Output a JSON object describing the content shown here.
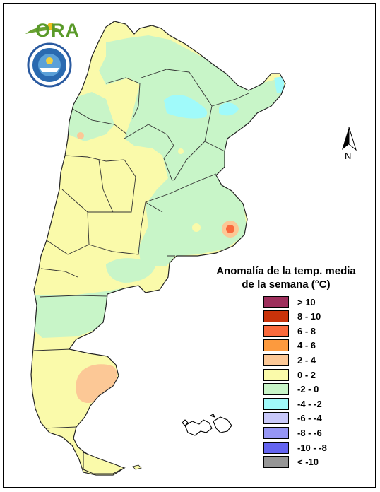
{
  "logo": {
    "ora_text": "ORA",
    "smn_seal": "smn-seal-logo"
  },
  "north": {
    "letter": "N",
    "icon": "north-arrow-icon"
  },
  "legend": {
    "title_line1": "Anomalía de la temp. media",
    "title_line2": "de la semana (°C)",
    "classes": [
      {
        "label": "> 10",
        "color": "#9e2f5c"
      },
      {
        "label": "8 - 10",
        "color": "#c8320a"
      },
      {
        "label": "6 - 8",
        "color": "#fa6a3c"
      },
      {
        "label": "4 - 6",
        "color": "#fc9a3e"
      },
      {
        "label": "2 - 4",
        "color": "#fcc896"
      },
      {
        "label": "0 - 2",
        "color": "#fafaaa"
      },
      {
        "label": "-2 - 0",
        "color": "#c8f5c8"
      },
      {
        "label": "-4 - -2",
        "color": "#a0fafa"
      },
      {
        "label": "-6 - -4",
        "color": "#c8c8fa"
      },
      {
        "label": "-8 - -6",
        "color": "#9696f5"
      },
      {
        "label": "-10 - -8",
        "color": "#6464f0"
      },
      {
        "label": "< -10",
        "color": "#969696"
      }
    ]
  },
  "colors": {
    "map_base": "#fafaaa",
    "anomaly_neg": "#c8f5c8",
    "anomaly_neg_strong": "#a0fafa",
    "anomaly_pos": "#fcc896",
    "anomaly_pos_strong": "#fa6a3c"
  }
}
